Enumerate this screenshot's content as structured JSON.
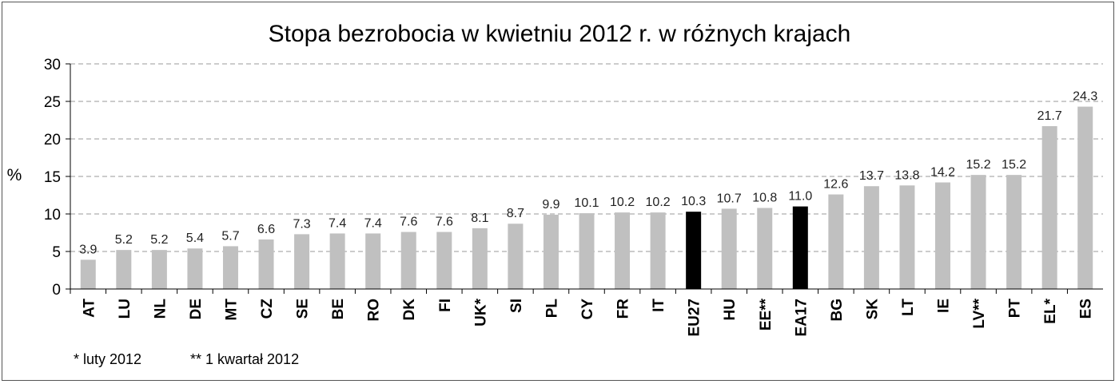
{
  "chart_data": {
    "type": "bar",
    "title": "Stopa bezrobocia w kwietniu 2012 r. w różnych krajach",
    "ylabel": "%",
    "xlabel": "",
    "ylim": [
      0,
      30
    ],
    "yticks": [
      0,
      5,
      10,
      15,
      20,
      25,
      30
    ],
    "grid": true,
    "categories": [
      "AT",
      "LU",
      "NL",
      "DE",
      "MT",
      "CZ",
      "SE",
      "BE",
      "RO",
      "DK",
      "FI",
      "UK*",
      "SI",
      "PL",
      "CY",
      "FR",
      "IT",
      "EU27",
      "HU",
      "EE**",
      "EA17",
      "BG",
      "SK",
      "LT",
      "IE",
      "LV**",
      "PT",
      "EL*",
      "ES"
    ],
    "values": [
      3.9,
      5.2,
      5.2,
      5.4,
      5.7,
      6.6,
      7.3,
      7.4,
      7.4,
      7.6,
      7.6,
      8.1,
      8.7,
      9.9,
      10.1,
      10.2,
      10.2,
      10.3,
      10.7,
      10.8,
      11.0,
      12.6,
      13.7,
      13.8,
      14.2,
      15.2,
      15.2,
      21.7,
      24.3
    ],
    "data_labels": [
      "3.9",
      "5.2",
      "5.2",
      "5.4",
      "5.7",
      "6.6",
      "7.3",
      "7.4",
      "7.4",
      "7.6",
      "7.6",
      "8.1",
      "8.7",
      "9.9",
      "10.1",
      "10.2",
      "10.2",
      "10.3",
      "10.7",
      "10.8",
      "11.0",
      "12.6",
      "13.7",
      "13.8",
      "14.2",
      "15.2",
      "15.2",
      "21.7",
      "24.3"
    ],
    "highlight": [
      "EU27",
      "EA17"
    ],
    "colors": {
      "bar": "#c0c0c0",
      "highlight": "#000000",
      "grid": "#9a9a9a"
    }
  },
  "footnotes": [
    "* luty 2012",
    "** 1 kwartał 2012"
  ]
}
